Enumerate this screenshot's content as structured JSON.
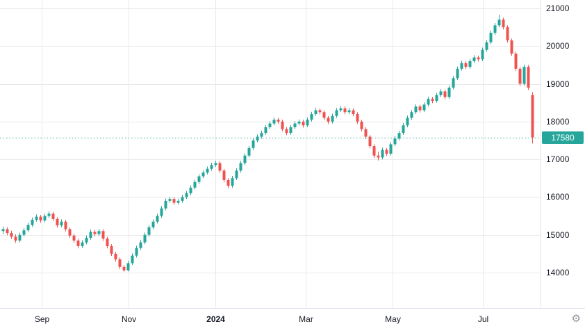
{
  "colors": {
    "up": "#26a69a",
    "down": "#ef5350",
    "grid": "#e9e9ea",
    "axis_text": "#131722",
    "axis_border": "#e0e3eb",
    "background": "#ffffff"
  },
  "price_line": {
    "value": 17580,
    "label": "17580",
    "color": "#26a69a"
  },
  "toolbar": {
    "settings_icon": "⚙"
  },
  "chart_data": {
    "type": "candlestick",
    "title": "",
    "xlabel": "",
    "ylabel": "",
    "grid": true,
    "y_axis": {
      "min": 14000,
      "max": 21000,
      "tick_step": 1000
    },
    "y_tick_labels": [
      "21000",
      "20000",
      "19000",
      "18000",
      "17000",
      "16000",
      "15000",
      "14000"
    ],
    "x_ticks": [
      {
        "label": "Sep",
        "i": 9.3
      },
      {
        "label": "Nov",
        "i": 30.2
      },
      {
        "label": "2024",
        "i": 51.0,
        "year": true
      },
      {
        "label": "Mar",
        "i": 72.6
      },
      {
        "label": "May",
        "i": 93.5
      },
      {
        "label": "Jul",
        "i": 115.2
      }
    ],
    "last_price": 17580,
    "candles": [
      [
        15100,
        15220,
        15020,
        15150
      ],
      [
        15150,
        15200,
        14990,
        15050
      ],
      [
        15050,
        15110,
        14890,
        14950
      ],
      [
        14950,
        15010,
        14790,
        14850
      ],
      [
        14850,
        15060,
        14800,
        15000
      ],
      [
        15000,
        15180,
        14950,
        15120
      ],
      [
        15120,
        15320,
        15070,
        15260
      ],
      [
        15260,
        15460,
        15210,
        15400
      ],
      [
        15400,
        15540,
        15350,
        15480
      ],
      [
        15480,
        15530,
        15320,
        15380
      ],
      [
        15380,
        15560,
        15330,
        15500
      ],
      [
        15500,
        15620,
        15450,
        15560
      ],
      [
        15560,
        15610,
        15360,
        15420
      ],
      [
        15420,
        15470,
        15190,
        15250
      ],
      [
        15250,
        15410,
        15200,
        15350
      ],
      [
        15350,
        15400,
        15090,
        15150
      ],
      [
        15150,
        15200,
        14920,
        14980
      ],
      [
        14980,
        15030,
        14790,
        14850
      ],
      [
        14850,
        14900,
        14640,
        14700
      ],
      [
        14700,
        14860,
        14650,
        14800
      ],
      [
        14800,
        14980,
        14750,
        14920
      ],
      [
        14920,
        15140,
        14870,
        15080
      ],
      [
        15080,
        15130,
        14960,
        15020
      ],
      [
        15020,
        15160,
        14970,
        15100
      ],
      [
        15100,
        15150,
        14840,
        14900
      ],
      [
        14900,
        14950,
        14640,
        14700
      ],
      [
        14700,
        14750,
        14440,
        14500
      ],
      [
        14500,
        14550,
        14290,
        14350
      ],
      [
        14350,
        14400,
        14090,
        14150
      ],
      [
        14150,
        14200,
        14020,
        14060
      ],
      [
        14060,
        14310,
        14030,
        14250
      ],
      [
        14250,
        14510,
        14200,
        14450
      ],
      [
        14450,
        14710,
        14400,
        14650
      ],
      [
        14650,
        14860,
        14600,
        14800
      ],
      [
        14800,
        15060,
        14750,
        15000
      ],
      [
        15000,
        15260,
        14950,
        15200
      ],
      [
        15200,
        15410,
        15150,
        15350
      ],
      [
        15350,
        15560,
        15300,
        15500
      ],
      [
        15500,
        15760,
        15450,
        15700
      ],
      [
        15700,
        15960,
        15650,
        15900
      ],
      [
        15900,
        16010,
        15850,
        15950
      ],
      [
        15950,
        16000,
        15790,
        15850
      ],
      [
        15850,
        15960,
        15800,
        15900
      ],
      [
        15900,
        16060,
        15850,
        16000
      ],
      [
        16000,
        16160,
        15950,
        16100
      ],
      [
        16100,
        16310,
        16050,
        16250
      ],
      [
        16250,
        16460,
        16200,
        16400
      ],
      [
        16400,
        16610,
        16350,
        16550
      ],
      [
        16550,
        16710,
        16500,
        16650
      ],
      [
        16650,
        16810,
        16600,
        16750
      ],
      [
        16750,
        16910,
        16700,
        16850
      ],
      [
        16850,
        16960,
        16800,
        16900
      ],
      [
        16900,
        16950,
        16640,
        16700
      ],
      [
        16700,
        16750,
        16390,
        16450
      ],
      [
        16450,
        16500,
        16240,
        16300
      ],
      [
        16300,
        16560,
        16250,
        16500
      ],
      [
        16500,
        16760,
        16450,
        16700
      ],
      [
        16700,
        16960,
        16650,
        16900
      ],
      [
        16900,
        17160,
        16850,
        17100
      ],
      [
        17100,
        17360,
        17050,
        17300
      ],
      [
        17300,
        17560,
        17250,
        17500
      ],
      [
        17500,
        17660,
        17450,
        17600
      ],
      [
        17600,
        17760,
        17550,
        17700
      ],
      [
        17700,
        17910,
        17650,
        17850
      ],
      [
        17850,
        18010,
        17800,
        17950
      ],
      [
        17950,
        18110,
        17900,
        18050
      ],
      [
        18050,
        18100,
        17940,
        18000
      ],
      [
        18000,
        18050,
        17740,
        17800
      ],
      [
        17800,
        17850,
        17640,
        17700
      ],
      [
        17700,
        17910,
        17650,
        17850
      ],
      [
        17850,
        18010,
        17800,
        17950
      ],
      [
        17950,
        18060,
        17900,
        18000
      ],
      [
        18000,
        18050,
        17840,
        17900
      ],
      [
        17900,
        18110,
        17850,
        18050
      ],
      [
        18050,
        18260,
        18000,
        18200
      ],
      [
        18200,
        18360,
        18150,
        18300
      ],
      [
        18300,
        18350,
        18190,
        18250
      ],
      [
        18250,
        18300,
        18040,
        18100
      ],
      [
        18100,
        18150,
        17940,
        18000
      ],
      [
        18000,
        18210,
        17950,
        18150
      ],
      [
        18150,
        18360,
        18100,
        18300
      ],
      [
        18300,
        18410,
        18250,
        18350
      ],
      [
        18350,
        18400,
        18190,
        18250
      ],
      [
        18250,
        18360,
        18200,
        18300
      ],
      [
        18300,
        18350,
        18140,
        18200
      ],
      [
        18200,
        18250,
        17940,
        18000
      ],
      [
        18000,
        18050,
        17740,
        17800
      ],
      [
        17800,
        17850,
        17540,
        17600
      ],
      [
        17600,
        17650,
        17290,
        17350
      ],
      [
        17350,
        17400,
        17040,
        17100
      ],
      [
        17100,
        17200,
        16970,
        17050
      ],
      [
        17050,
        17310,
        17000,
        17250
      ],
      [
        17250,
        17300,
        17090,
        17150
      ],
      [
        17150,
        17460,
        17100,
        17400
      ],
      [
        17400,
        17610,
        17350,
        17550
      ],
      [
        17550,
        17760,
        17500,
        17700
      ],
      [
        17700,
        17960,
        17650,
        17900
      ],
      [
        17900,
        18160,
        17850,
        18100
      ],
      [
        18100,
        18310,
        18050,
        18250
      ],
      [
        18250,
        18460,
        18200,
        18400
      ],
      [
        18400,
        18450,
        18240,
        18300
      ],
      [
        18300,
        18510,
        18250,
        18450
      ],
      [
        18450,
        18660,
        18400,
        18600
      ],
      [
        18600,
        18650,
        18490,
        18550
      ],
      [
        18550,
        18760,
        18500,
        18700
      ],
      [
        18700,
        18860,
        18650,
        18800
      ],
      [
        18800,
        18850,
        18590,
        18650
      ],
      [
        18650,
        18960,
        18600,
        18900
      ],
      [
        18900,
        19210,
        18850,
        19150
      ],
      [
        19150,
        19460,
        19100,
        19400
      ],
      [
        19400,
        19610,
        19350,
        19550
      ],
      [
        19550,
        19600,
        19390,
        19450
      ],
      [
        19450,
        19660,
        19400,
        19600
      ],
      [
        19600,
        19760,
        19550,
        19700
      ],
      [
        19700,
        19750,
        19590,
        19650
      ],
      [
        19650,
        19960,
        19600,
        19900
      ],
      [
        19900,
        20160,
        19850,
        20100
      ],
      [
        20100,
        20410,
        20050,
        20350
      ],
      [
        20350,
        20610,
        20300,
        20550
      ],
      [
        20550,
        20830,
        20500,
        20700
      ],
      [
        20700,
        20750,
        20440,
        20500
      ],
      [
        20500,
        20550,
        20090,
        20150
      ],
      [
        20150,
        20200,
        19740,
        19800
      ],
      [
        19800,
        19850,
        19340,
        19400
      ],
      [
        19400,
        19450,
        18940,
        19000
      ],
      [
        19000,
        19510,
        18950,
        19450
      ],
      [
        19450,
        19500,
        18840,
        18900
      ],
      [
        18700,
        18780,
        17420,
        17580
      ]
    ]
  }
}
